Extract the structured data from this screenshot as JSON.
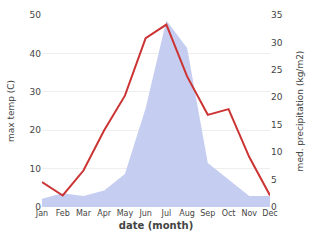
{
  "chart_data": {
    "type": "line",
    "categories": [
      "Jan",
      "Feb",
      "Mar",
      "Apr",
      "May",
      "Jun",
      "Jul",
      "Aug",
      "Sep",
      "Oct",
      "Nov",
      "Dec"
    ],
    "series": [
      {
        "type": "area",
        "axis": "y2",
        "color": "#c5cef0",
        "values": [
          1.5,
          2.5,
          2.0,
          3.0,
          6.0,
          18.0,
          34.0,
          29.0,
          8.0,
          5.0,
          2.0,
          2.0
        ]
      },
      {
        "type": "line",
        "axis": "y",
        "color": "#cc3333",
        "values": [
          6.5,
          3.0,
          9.5,
          20.0,
          29.0,
          44.0,
          47.5,
          34.0,
          24.0,
          25.5,
          13.0,
          3.0
        ]
      }
    ],
    "xlabel": "date (month)",
    "ylabel": "max temp (C)",
    "y2label": "med. precipitation (kg/m2)",
    "ylim": [
      0,
      50
    ],
    "yticks": [
      0,
      10,
      20,
      30,
      40,
      50
    ],
    "y2lim": [
      0,
      35
    ],
    "y2ticks": [
      0,
      5,
      10,
      15,
      20,
      25,
      30,
      35
    ],
    "grid": true
  }
}
